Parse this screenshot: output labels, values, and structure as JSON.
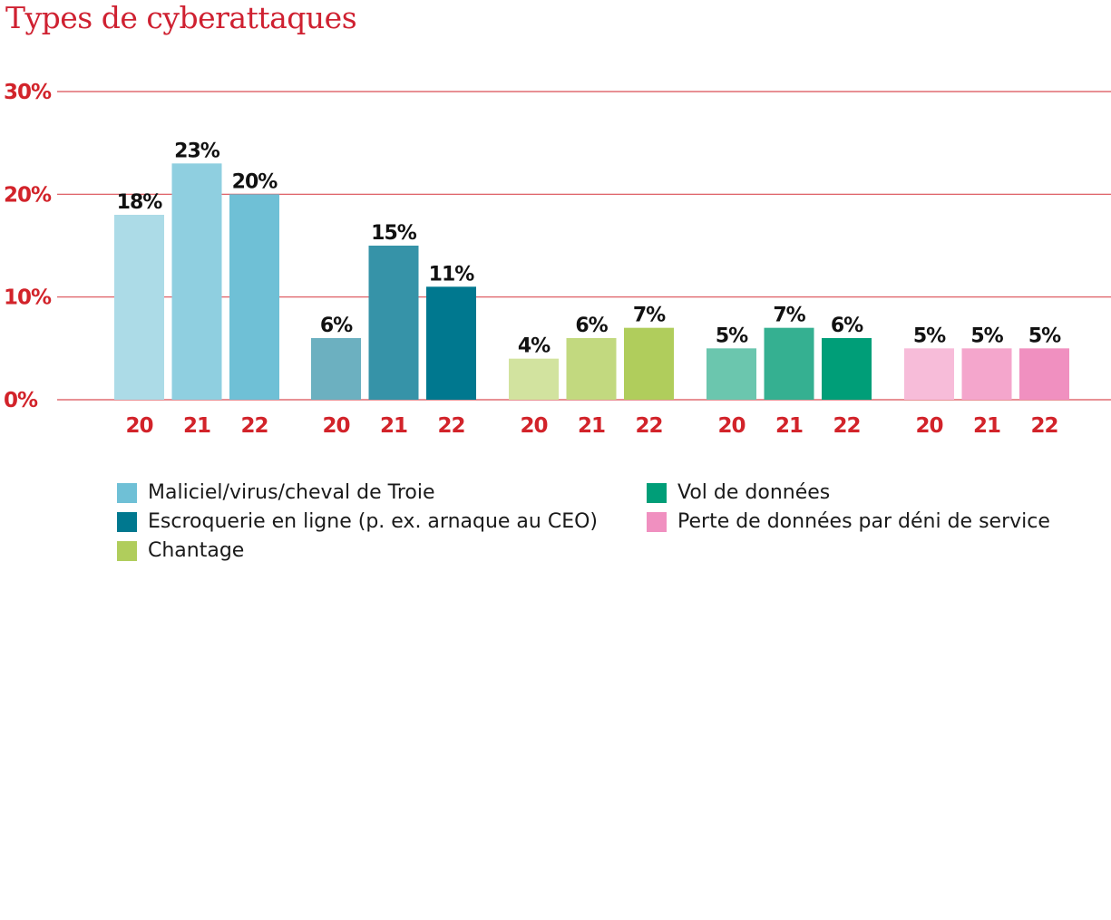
{
  "chart_data": {
    "type": "bar",
    "title": "Types de cyberattaques",
    "ylim": [
      0,
      30
    ],
    "yticks": [
      "0%",
      "10%",
      "20%",
      "30%"
    ],
    "ytick_values": [
      0,
      10,
      20,
      30
    ],
    "grid": true,
    "axis_color": "#d2232a",
    "categories": [
      "20",
      "21",
      "22"
    ],
    "legend_position": "bottom",
    "series": [
      {
        "name": "Maliciel/virus/cheval de Troie",
        "legend_color": "#6fc0d6",
        "colors": [
          "#acdbe7",
          "#8fcfe0",
          "#6fc0d6"
        ],
        "values": [
          18,
          23,
          20
        ],
        "labels": [
          "18%",
          "23%",
          "20%"
        ]
      },
      {
        "name": "Escroquerie en ligne (p. ex. arnaque au CEO)",
        "legend_color": "#00788f",
        "colors": [
          "#6cb0c0",
          "#3693a8",
          "#00788f"
        ],
        "values": [
          6,
          15,
          11
        ],
        "labels": [
          "6%",
          "15%",
          "11%"
        ]
      },
      {
        "name": "Chantage",
        "legend_color": "#b0cd5c",
        "colors": [
          "#d2e39f",
          "#c2d97f",
          "#b0cd5c"
        ],
        "values": [
          4,
          6,
          7
        ],
        "labels": [
          "4%",
          "6%",
          "7%"
        ]
      },
      {
        "name": "Vol de données",
        "legend_color": "#009e78",
        "colors": [
          "#6bc6ae",
          "#35b091",
          "#009e78"
        ],
        "values": [
          5,
          7,
          6
        ],
        "labels": [
          "5%",
          "7%",
          "6%"
        ]
      },
      {
        "name": "Perte de données par déni de service",
        "legend_color": "#f090c0",
        "colors": [
          "#f7bcd9",
          "#f4a6cc",
          "#f090c0"
        ],
        "values": [
          5,
          5,
          5
        ],
        "labels": [
          "5%",
          "5%",
          "5%"
        ]
      }
    ]
  }
}
